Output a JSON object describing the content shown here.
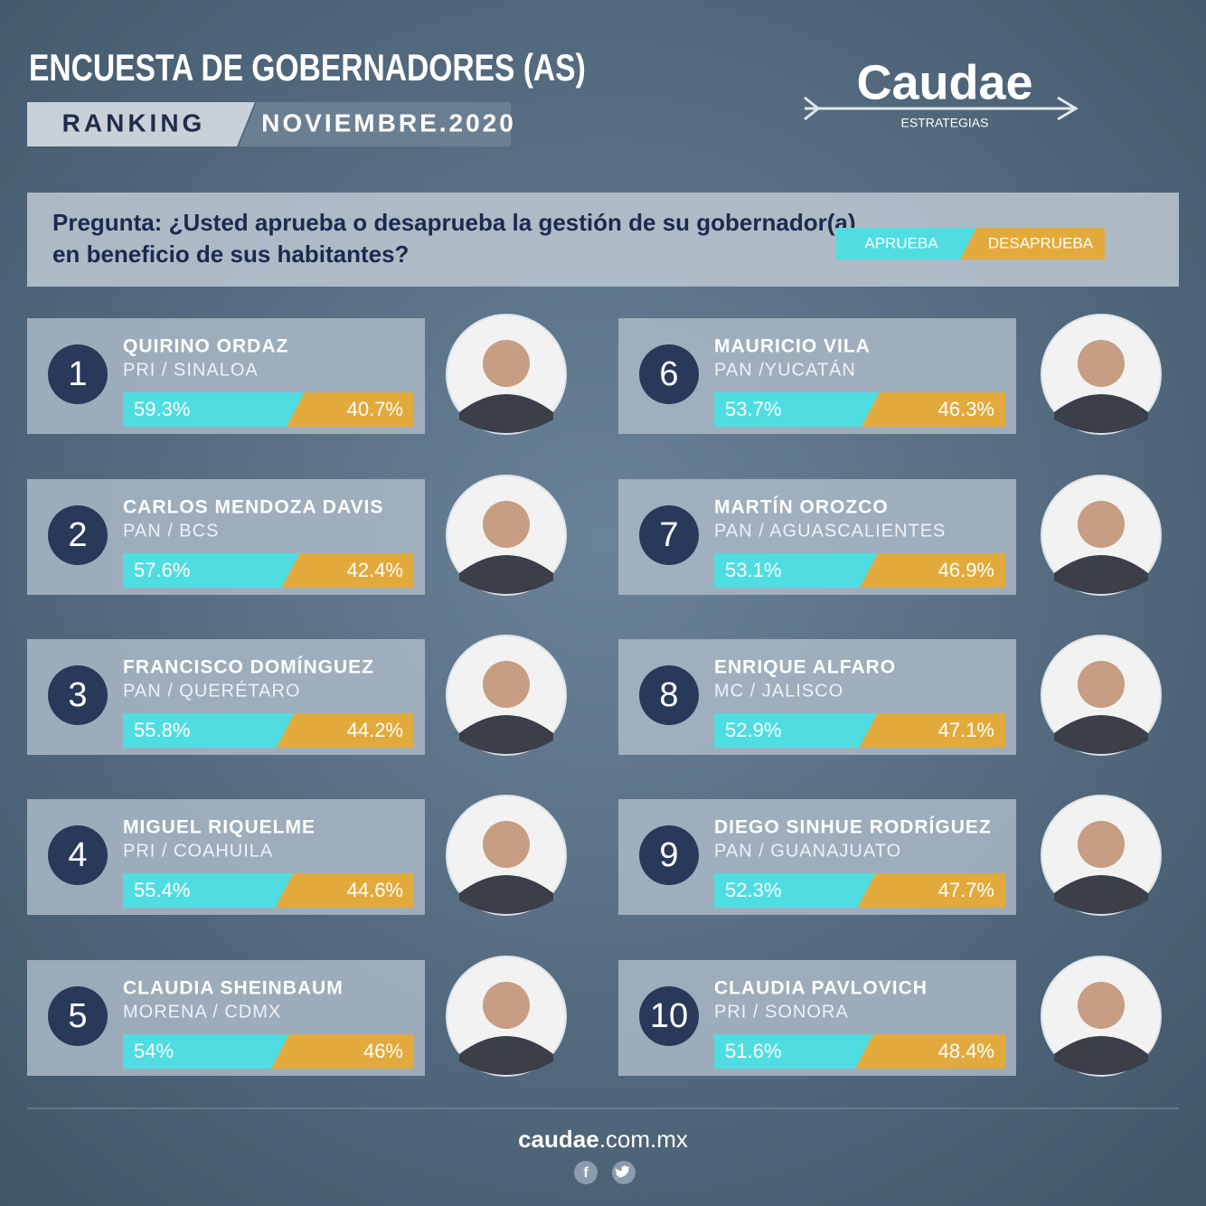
{
  "chart_data": {
    "type": "stacked-bar",
    "title": "ENCUESTA DE GOBERNADORES (AS)",
    "ranking_label": "RANKING",
    "date": "NOVIEMBRE.2020",
    "brand": "Caudae",
    "brand_sub": "ESTRATEGIAS",
    "question_lines": [
      "Pregunta: ¿Usted aprueba o desaprueba la gestión de su gobernador(a)",
      "en beneficio de sus habitantes?"
    ],
    "ranks": [
      1,
      2,
      3,
      4,
      5,
      6,
      7,
      8,
      9,
      10
    ],
    "categories": [
      "QUIRINO ORDAZ",
      "CARLOS MENDOZA DAVIS",
      "FRANCISCO DOMÍNGUEZ",
      "MIGUEL RIQUELME",
      "CLAUDIA SHEINBAUM",
      "MAURICIO VILA",
      "MARTÍN OROZCO",
      "ENRIQUE ALFARO",
      "DIEGO SINHUE RODRÍGUEZ",
      "CLAUDIA PAVLOVICH"
    ],
    "subtitles": [
      "PRI / SINALOA",
      "PAN / BCS",
      "PAN / QUERÉTARO",
      "PRI / COAHUILA",
      "MORENA / CDMX",
      "PAN /YUCATÁN",
      "PAN / AGUASCALIENTES",
      "MC / JALISCO",
      "PAN / GUANAJUATO",
      "PRI / SONORA"
    ],
    "series": [
      {
        "name": "APRUEBA",
        "color": "#4fdde2",
        "values": [
          59.3,
          57.6,
          55.8,
          55.4,
          54,
          53.7,
          53.1,
          52.9,
          52.3,
          51.6
        ],
        "value_labels": [
          "59.3%",
          "57.6%",
          "55.8%",
          "55.4%",
          "54%",
          "53.7%",
          "53.1%",
          "52.9%",
          "52.3%",
          "51.6%"
        ]
      },
      {
        "name": "DESAPRUEBA",
        "color": "#e2aa3c",
        "values": [
          40.7,
          42.4,
          44.2,
          44.6,
          46,
          46.3,
          46.9,
          47.1,
          47.7,
          48.4
        ],
        "value_labels": [
          "40.7%",
          "42.4%",
          "44.2%",
          "44.6%",
          "46%",
          "46.3%",
          "46.9%",
          "47.1%",
          "47.7%",
          "48.4%"
        ]
      }
    ],
    "footer_bold": "caudae",
    "footer_rest": ".com.mx"
  }
}
